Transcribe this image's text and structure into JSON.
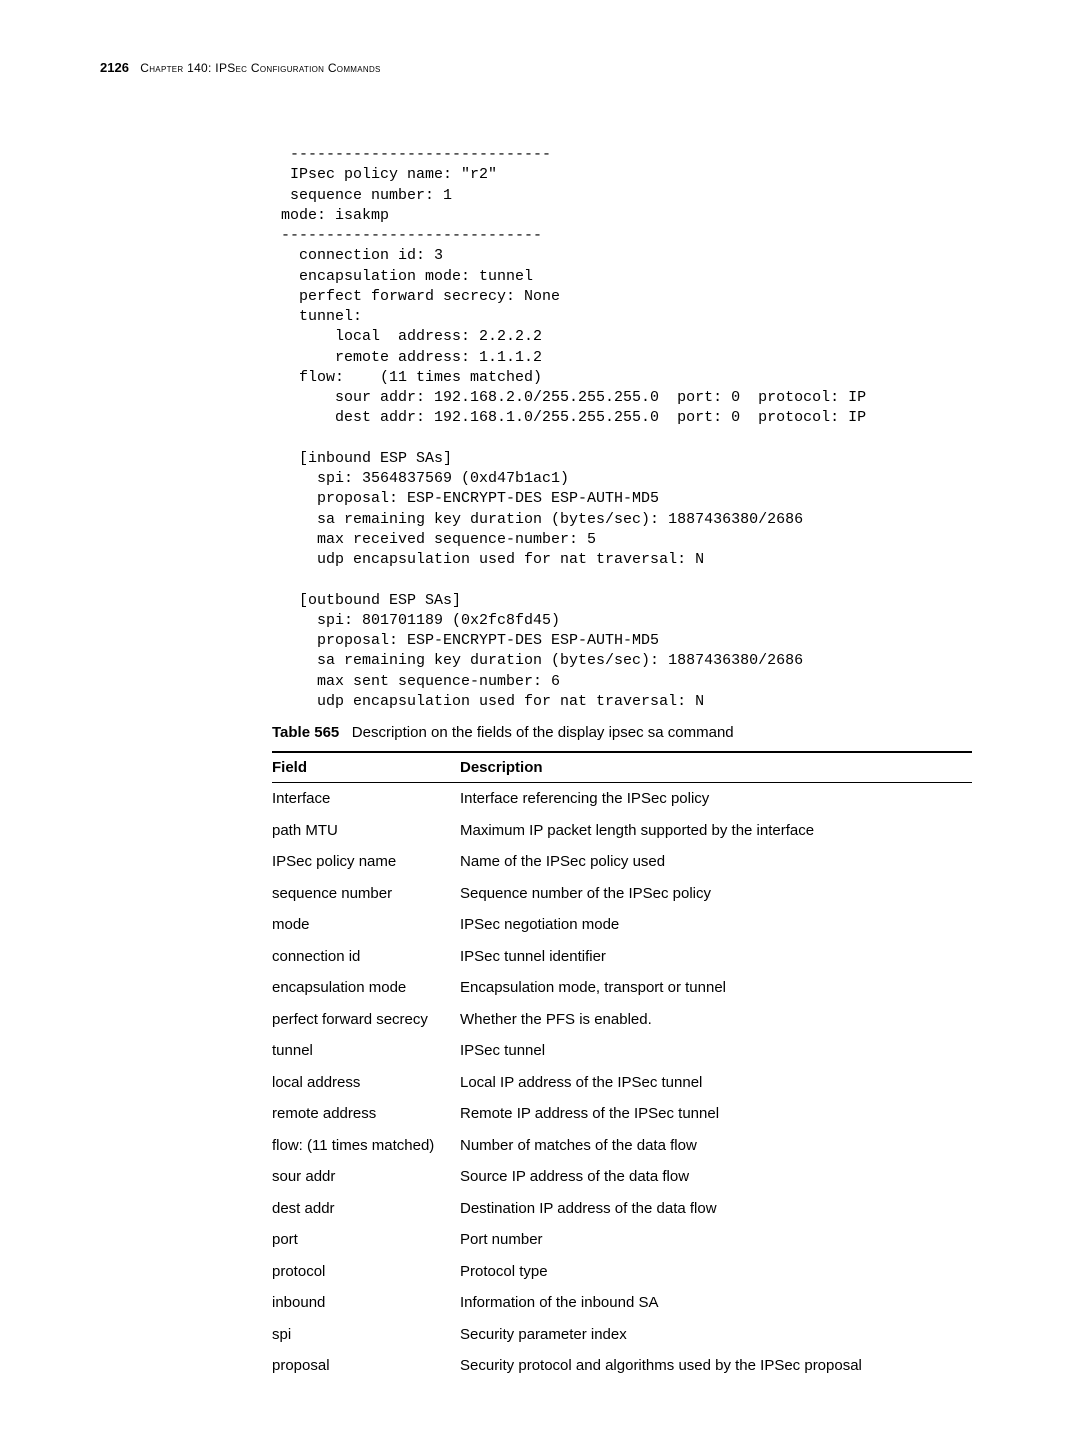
{
  "header": {
    "page_number": "2126",
    "chapter": "Chapter 140: IPSec Configuration Commands"
  },
  "code_output": "  -----------------------------\n  IPsec policy name: \"r2\"\n  sequence number: 1\n mode: isakmp\n -----------------------------\n   connection id: 3\n   encapsulation mode: tunnel\n   perfect forward secrecy: None\n   tunnel:\n       local  address: 2.2.2.2\n       remote address: 1.1.1.2\n   flow:    (11 times matched)\n       sour addr: 192.168.2.0/255.255.255.0  port: 0  protocol: IP\n       dest addr: 192.168.1.0/255.255.255.0  port: 0  protocol: IP\n\n   [inbound ESP SAs]\n     spi: 3564837569 (0xd47b1ac1)\n     proposal: ESP-ENCRYPT-DES ESP-AUTH-MD5\n     sa remaining key duration (bytes/sec): 1887436380/2686\n     max received sequence-number: 5\n     udp encapsulation used for nat traversal: N\n\n   [outbound ESP SAs]\n     spi: 801701189 (0x2fc8fd45)\n     proposal: ESP-ENCRYPT-DES ESP-AUTH-MD5\n     sa remaining key duration (bytes/sec): 1887436380/2686\n     max sent sequence-number: 6\n     udp encapsulation used for nat traversal: N",
  "table": {
    "label": "Table 565",
    "caption": "Description on the fields of the display ipsec sa command",
    "headers": {
      "field": "Field",
      "description": "Description"
    },
    "rows": [
      {
        "field": "Interface",
        "description": "Interface referencing the IPSec policy"
      },
      {
        "field": "path MTU",
        "description": "Maximum IP packet length supported by the interface"
      },
      {
        "field": "IPSec policy name",
        "description": "Name of the IPSec policy used"
      },
      {
        "field": "sequence number",
        "description": "Sequence number of the IPSec policy"
      },
      {
        "field": "mode",
        "description": "IPSec negotiation mode"
      },
      {
        "field": "connection id",
        "description": "IPSec tunnel identifier"
      },
      {
        "field": "encapsulation mode",
        "description": "Encapsulation mode, transport or tunnel"
      },
      {
        "field": "perfect forward secrecy",
        "description": "Whether the PFS is enabled."
      },
      {
        "field": "tunnel",
        "description": "IPSec tunnel"
      },
      {
        "field": "local address",
        "description": "Local IP address of the IPSec tunnel"
      },
      {
        "field": "remote address",
        "description": "Remote IP address of the IPSec tunnel"
      },
      {
        "field": "flow: (11 times matched)",
        "description": "Number of matches of the data flow"
      },
      {
        "field": "sour addr",
        "description": "Source IP address of the data flow"
      },
      {
        "field": "dest addr",
        "description": "Destination IP address of the data flow"
      },
      {
        "field": "port",
        "description": "Port number"
      },
      {
        "field": "protocol",
        "description": "Protocol type"
      },
      {
        "field": "inbound",
        "description": "Information of the inbound SA"
      },
      {
        "field": "spi",
        "description": "Security parameter index"
      },
      {
        "field": "proposal",
        "description": "Security protocol and algorithms used by the IPSec proposal"
      }
    ]
  }
}
